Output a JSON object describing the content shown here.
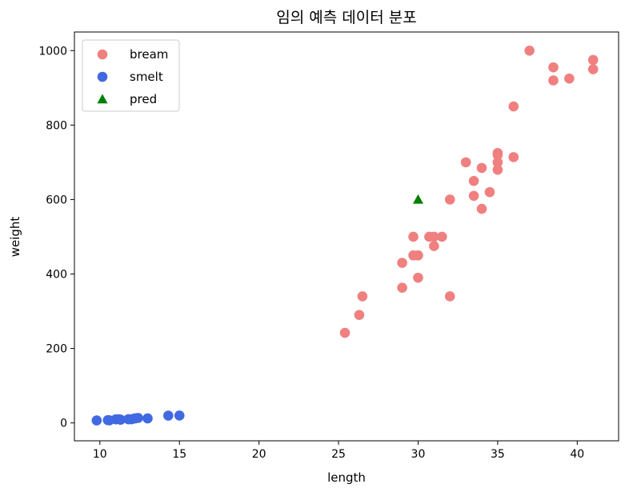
{
  "chart_data": {
    "type": "scatter",
    "title": "임의 예측 데이터 분포",
    "xlabel": "length",
    "ylabel": "weight",
    "xlim": [
      8.4,
      42.6
    ],
    "ylim": [
      -48,
      1050
    ],
    "xticks": [
      10,
      15,
      20,
      25,
      30,
      35,
      40
    ],
    "yticks": [
      0,
      200,
      400,
      600,
      800,
      1000
    ],
    "grid": false,
    "legend_position": "top-left",
    "series": [
      {
        "name": "bream",
        "marker": "circle",
        "color": "#f08080",
        "x": [
          25.4,
          26.3,
          26.5,
          29.0,
          29.0,
          29.7,
          29.7,
          30.0,
          30.0,
          30.7,
          31.0,
          31.0,
          31.5,
          32.0,
          32.0,
          33.0,
          33.5,
          33.5,
          34.0,
          34.0,
          34.5,
          35.0,
          35.0,
          35.0,
          35.0,
          36.0,
          36.0,
          37.0,
          38.5,
          38.5,
          39.5,
          41.0,
          41.0
        ],
        "y": [
          242,
          290,
          340,
          363,
          430,
          450,
          500,
          390,
          450,
          500,
          475,
          500,
          500,
          340,
          600,
          700,
          610,
          650,
          575,
          685,
          620,
          680,
          700,
          725,
          720,
          714,
          850,
          1000,
          920,
          955,
          925,
          975,
          950
        ]
      },
      {
        "name": "smelt",
        "marker": "circle",
        "color": "#4169e1",
        "x": [
          9.8,
          10.5,
          10.6,
          11.0,
          11.2,
          11.3,
          11.8,
          11.8,
          12.0,
          12.2,
          12.4,
          13.0,
          14.3,
          15.0
        ],
        "y": [
          6.7,
          7.5,
          7.0,
          9.7,
          9.8,
          8.7,
          10.0,
          9.9,
          9.8,
          12.2,
          13.4,
          12.2,
          19.7,
          19.9
        ]
      },
      {
        "name": "pred",
        "marker": "triangle",
        "color": "#008000",
        "x": [
          30
        ],
        "y": [
          600
        ]
      }
    ]
  }
}
